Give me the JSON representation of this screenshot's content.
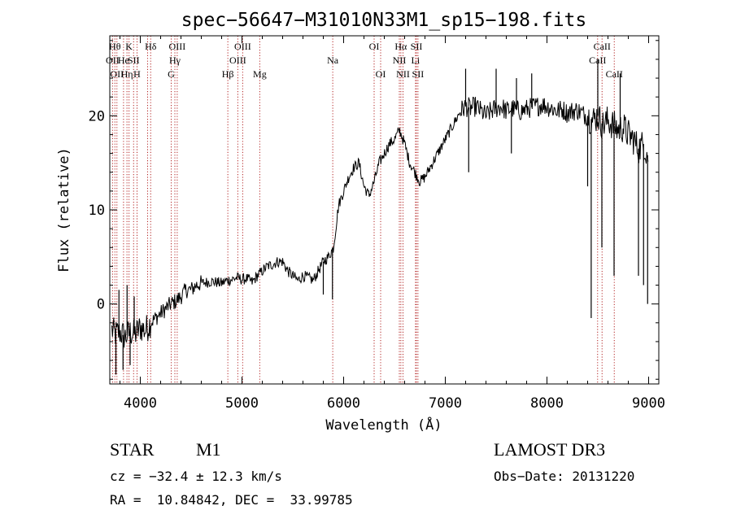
{
  "chart_data": {
    "type": "line",
    "title": "spec−56647−M31010N33M1_sp15−198.fits",
    "xlabel": "Wavelength (Å)",
    "ylabel": "Flux (relative)",
    "xlim": [
      3700,
      9100
    ],
    "ylim": [
      -8.5,
      28.5
    ],
    "xticks": [
      4000,
      5000,
      6000,
      7000,
      8000,
      9000
    ],
    "xtick_labels": [
      "4000",
      "5000",
      "6000",
      "7000",
      "8000",
      "9000"
    ],
    "yticks": [
      0,
      10,
      20
    ],
    "ytick_labels": [
      "0",
      "10",
      "20"
    ],
    "series": [
      {
        "name": "flux",
        "x": [
          3700,
          3750,
          3800,
          3850,
          3900,
          3950,
          4000,
          4050,
          4100,
          4150,
          4200,
          4250,
          4300,
          4350,
          4400,
          4450,
          4500,
          4550,
          4600,
          4650,
          4700,
          4750,
          4800,
          4850,
          4900,
          4950,
          5000,
          5050,
          5100,
          5150,
          5200,
          5250,
          5300,
          5350,
          5400,
          5450,
          5500,
          5550,
          5600,
          5650,
          5700,
          5750,
          5800,
          5850,
          5900,
          5950,
          6000,
          6050,
          6100,
          6150,
          6200,
          6250,
          6300,
          6350,
          6400,
          6450,
          6500,
          6550,
          6600,
          6650,
          6700,
          6750,
          6800,
          6850,
          6900,
          6950,
          7000,
          7050,
          7100,
          7150,
          7200,
          7250,
          7300,
          7350,
          7400,
          7450,
          7500,
          7550,
          7600,
          7650,
          7700,
          7750,
          7800,
          7850,
          7900,
          7950,
          8000,
          8050,
          8100,
          8150,
          8200,
          8250,
          8300,
          8350,
          8400,
          8450,
          8500,
          8550,
          8600,
          8650,
          8700,
          8750,
          8800,
          8850,
          8900,
          8950,
          9000
        ],
        "y": [
          -2.5,
          -3.2,
          -3.0,
          -3.5,
          -3.0,
          -3.2,
          -2.5,
          -2.8,
          -2.0,
          -1.5,
          -1.0,
          -0.5,
          0.0,
          0.3,
          0.8,
          1.5,
          1.5,
          2.0,
          2.2,
          2.3,
          2.4,
          2.3,
          2.2,
          2.5,
          2.6,
          2.8,
          2.6,
          2.7,
          2.3,
          3.0,
          3.5,
          4.0,
          4.2,
          4.5,
          4.5,
          3.5,
          3.0,
          2.5,
          3.0,
          2.8,
          2.5,
          3.5,
          4.5,
          5.0,
          6.0,
          10.5,
          12.0,
          13.5,
          14.5,
          15.0,
          12.5,
          11.5,
          13.0,
          15.0,
          16.0,
          17.0,
          17.5,
          18.5,
          17.0,
          15.0,
          14.0,
          13.0,
          13.5,
          14.5,
          15.5,
          16.5,
          17.5,
          18.5,
          19.5,
          20.5,
          21.0,
          20.8,
          21.0,
          20.5,
          20.0,
          20.5,
          20.8,
          21.0,
          20.5,
          20.8,
          20.6,
          20.5,
          20.7,
          20.9,
          21.0,
          21.2,
          21.0,
          20.8,
          20.5,
          20.7,
          20.3,
          20.5,
          20.6,
          20.2,
          20.0,
          19.5,
          20.0,
          19.0,
          19.5,
          19.0,
          18.5,
          18.8,
          18.0,
          17.5,
          16.5,
          17.0,
          15.5
        ],
        "spikes": [
          {
            "x": 3760,
            "y": -7.5
          },
          {
            "x": 3790,
            "y": 1.5
          },
          {
            "x": 3830,
            "y": -7.0
          },
          {
            "x": 3870,
            "y": 2.0
          },
          {
            "x": 3900,
            "y": -6.5
          },
          {
            "x": 3940,
            "y": 0.8
          },
          {
            "x": 5800,
            "y": 1.0
          },
          {
            "x": 5890,
            "y": 0.5
          },
          {
            "x": 7200,
            "y": 25.0
          },
          {
            "x": 7230,
            "y": 14.0
          },
          {
            "x": 7500,
            "y": 25.0
          },
          {
            "x": 7650,
            "y": 16.0
          },
          {
            "x": 7700,
            "y": 24.0
          },
          {
            "x": 7850,
            "y": 24.5
          },
          {
            "x": 8400,
            "y": 12.5
          },
          {
            "x": 8435,
            "y": -1.5
          },
          {
            "x": 8500,
            "y": 26.0
          },
          {
            "x": 8540,
            "y": 6.0
          },
          {
            "x": 8660,
            "y": 3.0
          },
          {
            "x": 8720,
            "y": 24.5
          },
          {
            "x": 8900,
            "y": 3.0
          },
          {
            "x": 8950,
            "y": 2.0
          },
          {
            "x": 8990,
            "y": 0.0
          }
        ]
      }
    ],
    "lines": [
      {
        "x": 3727,
        "row": 1,
        "label": "OII"
      },
      {
        "x": 3750,
        "row": 0,
        "label": "Hθ"
      },
      {
        "x": 3770,
        "row": 2,
        "label": "OII"
      },
      {
        "x": 3835,
        "row": 1,
        "label": "He"
      },
      {
        "x": 3869,
        "row": 2,
        "label": "Hη"
      },
      {
        "x": 3889,
        "row": 0,
        "label": "K"
      },
      {
        "x": 3934,
        "row": 1,
        "label": "SII"
      },
      {
        "x": 3968,
        "row": 2,
        "label": "H"
      },
      {
        "x": 4072,
        "row": 1,
        "label": ""
      },
      {
        "x": 4102,
        "row": 0,
        "label": "Hδ"
      },
      {
        "x": 4304,
        "row": 2,
        "label": "G"
      },
      {
        "x": 4340,
        "row": 1,
        "label": "Hγ"
      },
      {
        "x": 4363,
        "row": 0,
        "label": "OIII"
      },
      {
        "x": 4861,
        "row": 2,
        "label": "Hβ"
      },
      {
        "x": 4959,
        "row": 1,
        "label": "OIII"
      },
      {
        "x": 5007,
        "row": 0,
        "label": "OIII"
      },
      {
        "x": 5175,
        "row": 2,
        "label": "Mg"
      },
      {
        "x": 5893,
        "row": 1,
        "label": "Na"
      },
      {
        "x": 6300,
        "row": 0,
        "label": "OI"
      },
      {
        "x": 6364,
        "row": 2,
        "label": "OI"
      },
      {
        "x": 6548,
        "row": 1,
        "label": "NII"
      },
      {
        "x": 6563,
        "row": 0,
        "label": "Hα"
      },
      {
        "x": 6584,
        "row": 2,
        "label": "NII"
      },
      {
        "x": 6707,
        "row": 1,
        "label": "Li"
      },
      {
        "x": 6716,
        "row": 0,
        "label": "SII"
      },
      {
        "x": 6731,
        "row": 2,
        "label": "SII"
      },
      {
        "x": 8498,
        "row": 1,
        "label": "CaII"
      },
      {
        "x": 8542,
        "row": 0,
        "label": "CaII"
      },
      {
        "x": 8662,
        "row": 2,
        "label": "CaII"
      }
    ]
  },
  "footer": {
    "object_type": "STAR",
    "subclass": "M1",
    "survey": "LAMOST DR3",
    "redshift": "cz = −32.4 ± 12.3 km/s",
    "obs_date": "Obs−Date: 20131220",
    "coords": "RA =  10.84842, DEC =  33.99785"
  }
}
